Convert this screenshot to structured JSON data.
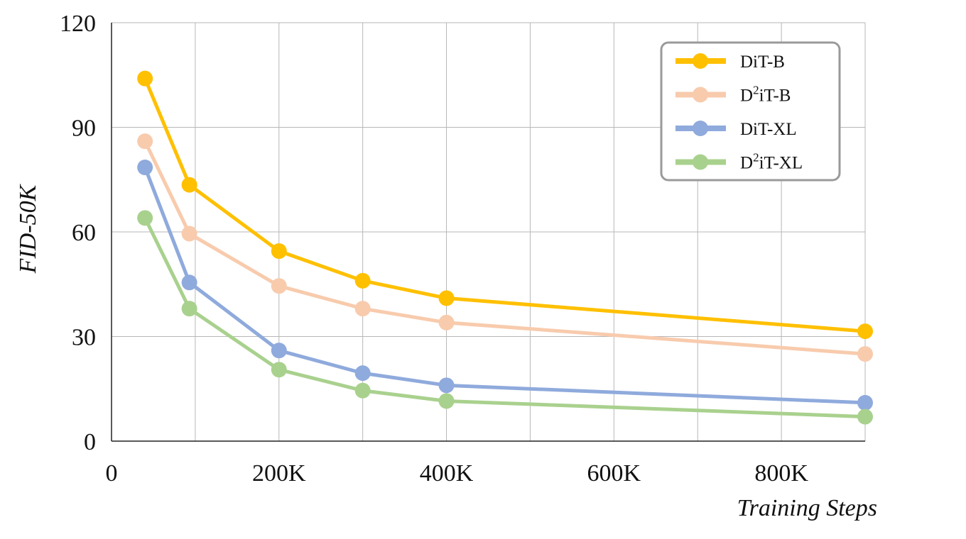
{
  "chart_data": {
    "type": "line",
    "xlabel": "Training Steps",
    "ylabel": "FID-50K",
    "xlim": [
      0,
      900000
    ],
    "ylim": [
      0,
      120
    ],
    "x_ticks": [
      0,
      200000,
      400000,
      600000,
      800000
    ],
    "x_tick_labels": [
      "0",
      "200K",
      "400K",
      "600K",
      "800K"
    ],
    "y_ticks": [
      0,
      30,
      60,
      90,
      120
    ],
    "y_tick_labels": [
      "0",
      "30",
      "60",
      "90",
      "120"
    ],
    "grid": true,
    "legend_position": "top-right",
    "x": [
      40000,
      93000,
      200000,
      300000,
      400000,
      900000
    ],
    "series": [
      {
        "name": "DiT-B",
        "legend_base": "DiT-B",
        "color": "#FFC000",
        "values": [
          104,
          73.5,
          54.5,
          46,
          41,
          31.5
        ]
      },
      {
        "name": "D²iT-B",
        "legend_base": "D",
        "legend_sup": "2",
        "legend_tail": "iT-B",
        "color": "#F8CBAD",
        "values": [
          86,
          59.5,
          44.5,
          38,
          34,
          25
        ]
      },
      {
        "name": "DiT-XL",
        "legend_base": "DiT-XL",
        "color": "#8FAADC",
        "values": [
          78.5,
          45.5,
          26,
          19.5,
          16,
          11
        ]
      },
      {
        "name": "D²iT-XL",
        "legend_base": "D",
        "legend_sup": "2",
        "legend_tail": "iT-XL",
        "color": "#A9D18E",
        "values": [
          64,
          38,
          20.5,
          14.5,
          11.5,
          7
        ]
      }
    ]
  }
}
